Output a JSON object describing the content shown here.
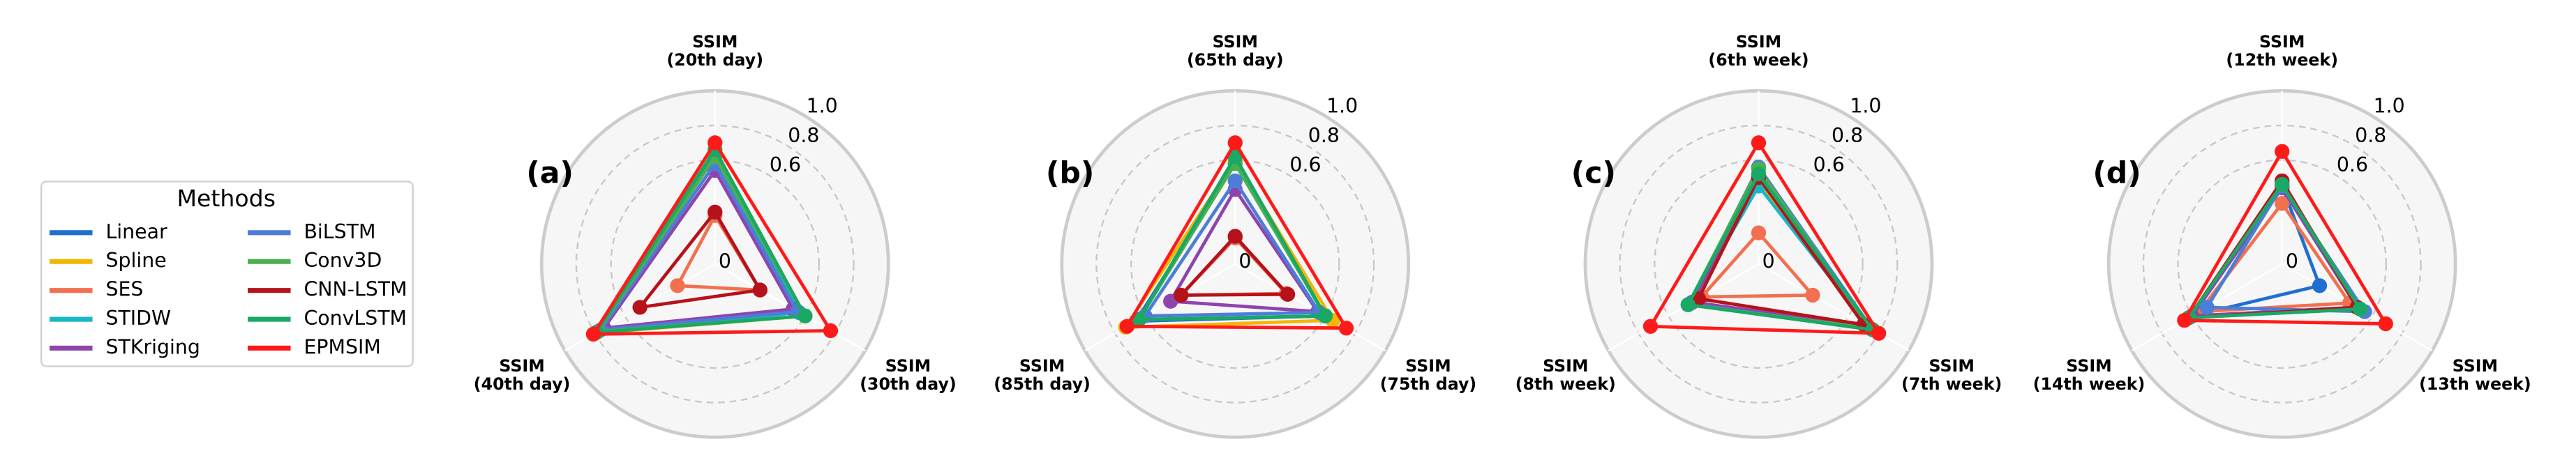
{
  "legend_title": "Methods",
  "chart_data": [
    {
      "type": "radar",
      "panel_label": "(a)",
      "axis_label": "SSIM",
      "categories": [
        "(20th day)",
        "(30th day)",
        "(40th day)"
      ],
      "rlim": [
        0,
        1
      ],
      "rticks": [
        0,
        0.6,
        0.8,
        {
          "value": 1,
          "label": "1.0"
        }
      ],
      "series": [
        {
          "name": "Linear",
          "color": "#1f6fd0",
          "values": [
            0.64,
            0.56,
            0.78
          ]
        },
        {
          "name": "Spline",
          "color": "#f2b705",
          "values": [
            0.66,
            0.6,
            0.8
          ]
        },
        {
          "name": "SES",
          "color": "#f2704f",
          "values": [
            0.28,
            0.3,
            0.25
          ]
        },
        {
          "name": "STIDW",
          "color": "#17b8c4",
          "values": [
            0.62,
            0.56,
            0.78
          ]
        },
        {
          "name": "STKriging",
          "color": "#8e44ad",
          "values": [
            0.54,
            0.52,
            0.74
          ]
        },
        {
          "name": "BiLSTM",
          "color": "#4c7ed8",
          "values": [
            0.58,
            0.55,
            0.76
          ]
        },
        {
          "name": "Conv3D",
          "color": "#4caf50",
          "values": [
            0.62,
            0.6,
            0.78
          ]
        },
        {
          "name": "CNN-LSTM",
          "color": "#b5121b",
          "values": [
            0.3,
            0.3,
            0.5
          ]
        },
        {
          "name": "ConvLSTM",
          "color": "#1aa865",
          "values": [
            0.66,
            0.6,
            0.79
          ]
        },
        {
          "name": "EPMSIM",
          "color": "#ff1a1a",
          "values": [
            0.7,
            0.77,
            0.81
          ]
        }
      ]
    },
    {
      "type": "radar",
      "panel_label": "(b)",
      "axis_label": "SSIM",
      "categories": [
        "(65th day)",
        "(75th day)",
        "(85th day)"
      ],
      "rlim": [
        0,
        1
      ],
      "rticks": [
        0,
        0.6,
        0.8,
        {
          "value": 1,
          "label": "1.0"
        }
      ],
      "series": [
        {
          "name": "Linear",
          "color": "#1f6fd0",
          "values": [
            0.58,
            0.6,
            0.66
          ]
        },
        {
          "name": "Spline",
          "color": "#f2b705",
          "values": [
            0.6,
            0.65,
            0.73
          ]
        },
        {
          "name": "SES",
          "color": "#f2704f",
          "values": [
            0.15,
            0.34,
            0.36
          ]
        },
        {
          "name": "STIDW",
          "color": "#17b8c4",
          "values": [
            0.58,
            0.6,
            0.64
          ]
        },
        {
          "name": "STKriging",
          "color": "#8e44ad",
          "values": [
            0.43,
            0.55,
            0.43
          ]
        },
        {
          "name": "BiLSTM",
          "color": "#4c7ed8",
          "values": [
            0.48,
            0.56,
            0.6
          ]
        },
        {
          "name": "Conv3D",
          "color": "#4caf50",
          "values": [
            0.58,
            0.6,
            0.64
          ]
        },
        {
          "name": "CNN-LSTM",
          "color": "#b5121b",
          "values": [
            0.16,
            0.35,
            0.36
          ]
        },
        {
          "name": "ConvLSTM",
          "color": "#1aa865",
          "values": [
            0.62,
            0.6,
            0.64
          ]
        },
        {
          "name": "EPMSIM",
          "color": "#ff1a1a",
          "values": [
            0.7,
            0.74,
            0.72
          ]
        }
      ]
    },
    {
      "type": "radar",
      "panel_label": "(c)",
      "axis_label": "SSIM",
      "categories": [
        "(6th week)",
        "(7th week)",
        "(8th week)"
      ],
      "rlim": [
        0,
        1
      ],
      "rticks": [
        0,
        0.6,
        0.8,
        {
          "value": 1,
          "label": "1.0"
        }
      ],
      "series": [
        {
          "name": "Linear",
          "color": "#1f6fd0",
          "values": [
            0.48,
            0.75,
            0.45
          ]
        },
        {
          "name": "Spline",
          "color": "#f2b705",
          "values": [
            0.46,
            0.74,
            0.44
          ]
        },
        {
          "name": "SES",
          "color": "#f2704f",
          "values": [
            0.18,
            0.36,
            0.38
          ]
        },
        {
          "name": "STIDW",
          "color": "#17b8c4",
          "values": [
            0.45,
            0.74,
            0.45
          ]
        },
        {
          "name": "STKriging",
          "color": "#8e44ad",
          "values": [
            0.5,
            0.72,
            0.44
          ]
        },
        {
          "name": "BiLSTM",
          "color": "#4c7ed8",
          "values": [
            0.56,
            0.76,
            0.46
          ]
        },
        {
          "name": "Conv3D",
          "color": "#4caf50",
          "values": [
            0.55,
            0.74,
            0.47
          ]
        },
        {
          "name": "CNN-LSTM",
          "color": "#b5121b",
          "values": [
            0.5,
            0.7,
            0.4
          ]
        },
        {
          "name": "ConvLSTM",
          "color": "#1aa865",
          "values": [
            0.52,
            0.76,
            0.47
          ]
        },
        {
          "name": "EPMSIM",
          "color": "#ff1a1a",
          "values": [
            0.7,
            0.8,
            0.72
          ]
        }
      ]
    },
    {
      "type": "radar",
      "panel_label": "(d)",
      "axis_label": "SSIM",
      "categories": [
        "(12th week)",
        "(13th week)",
        "(14th week)"
      ],
      "rlim": [
        0,
        1
      ],
      "rticks": [
        0,
        0.6,
        0.8,
        {
          "value": 1,
          "label": "1.0"
        }
      ],
      "series": [
        {
          "name": "Linear",
          "color": "#1f6fd0",
          "values": [
            0.45,
            0.25,
            0.6
          ]
        },
        {
          "name": "Spline",
          "color": "#f2b705",
          "values": [
            0.46,
            0.5,
            0.6
          ]
        },
        {
          "name": "SES",
          "color": "#f2704f",
          "values": [
            0.35,
            0.45,
            0.55
          ]
        },
        {
          "name": "STIDW",
          "color": "#17b8c4",
          "values": [
            0.44,
            0.5,
            0.6
          ]
        },
        {
          "name": "STKriging",
          "color": "#8e44ad",
          "values": [
            0.44,
            0.5,
            0.6
          ]
        },
        {
          "name": "BiLSTM",
          "color": "#4c7ed8",
          "values": [
            0.45,
            0.55,
            0.5
          ]
        },
        {
          "name": "Conv3D",
          "color": "#4caf50",
          "values": [
            0.47,
            0.52,
            0.62
          ]
        },
        {
          "name": "CNN-LSTM",
          "color": "#b5121b",
          "values": [
            0.48,
            0.5,
            0.62
          ]
        },
        {
          "name": "ConvLSTM",
          "color": "#1aa865",
          "values": [
            0.46,
            0.52,
            0.62
          ]
        },
        {
          "name": "EPMSIM",
          "color": "#ff1a1a",
          "values": [
            0.65,
            0.69,
            0.65
          ]
        }
      ]
    }
  ]
}
